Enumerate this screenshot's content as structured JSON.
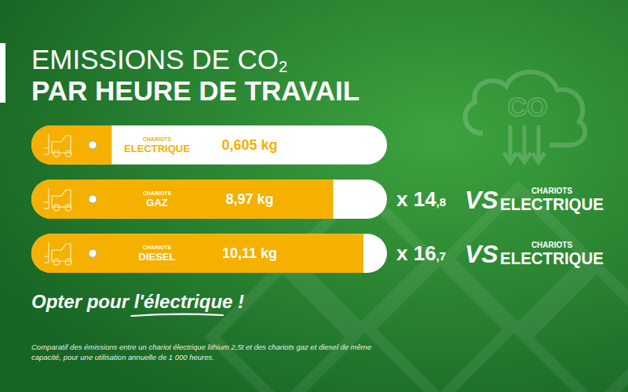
{
  "chart_data": {
    "type": "bar",
    "orientation": "horizontal",
    "title": "EMISSIONS DE CO2",
    "subtitle": "PAR HEURE DE TRAVAIL",
    "categories": [
      "CHARIOTS ELECTRIQUE",
      "CHARIOTS GAZ",
      "CHARIOTS DIESEL"
    ],
    "values": [
      0.605,
      8.97,
      10.11
    ],
    "value_labels": [
      "0,605 kg",
      "8,97 kg",
      "10,11 kg"
    ],
    "data_labels": true,
    "color": "#f5b000",
    "xlim": [
      0,
      11
    ],
    "tick_labels": false,
    "grid": false,
    "comparisons": [
      null,
      {
        "label": "x 14,8",
        "vs": "VS",
        "reference": "CHARIOTS ELECTRIQUE"
      },
      {
        "label": "x 16,7",
        "vs": "VS",
        "reference": "CHARIOTS ELECTRIQUE"
      }
    ],
    "annotation": "Opter pour l'électrique !",
    "footnote": "Comparatif des émissions entre un chariot électrique lithium 2,5t et des chariots gaz et diesel de même capacité, pour une utilisation annuelle de 1 000 heures."
  }
}
